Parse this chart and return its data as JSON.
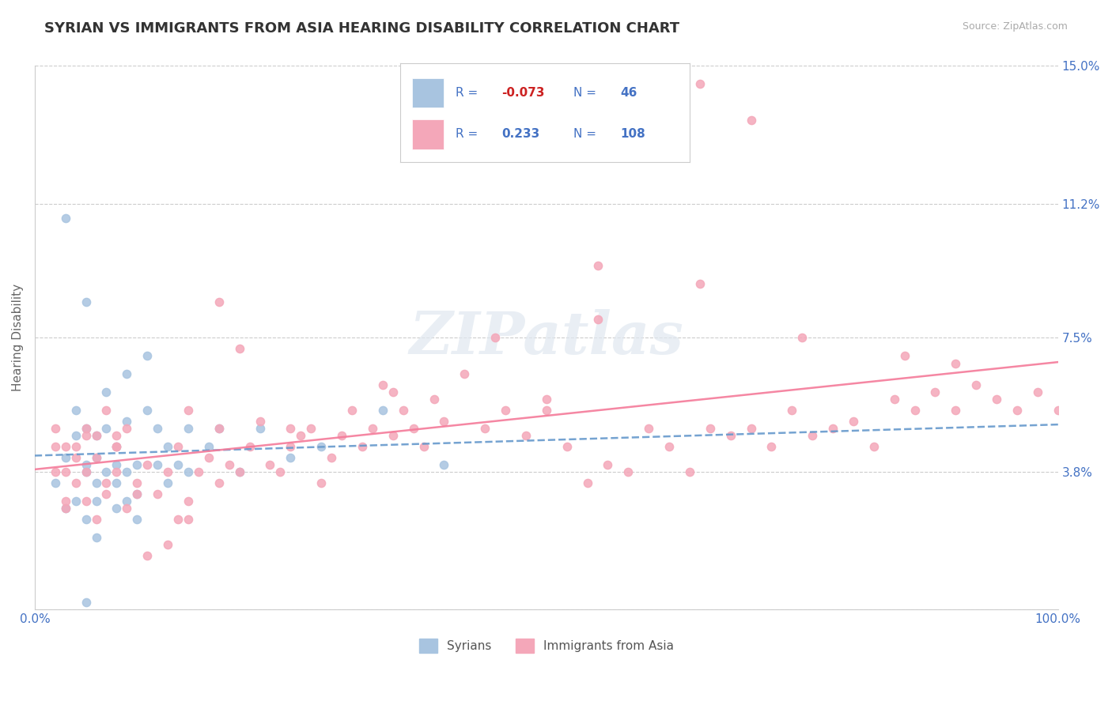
{
  "title": "SYRIAN VS IMMIGRANTS FROM ASIA HEARING DISABILITY CORRELATION CHART",
  "source": "Source: ZipAtlas.com",
  "ylabel": "Hearing Disability",
  "xlim": [
    0,
    100
  ],
  "ylim": [
    0,
    15
  ],
  "yticks": [
    0,
    3.8,
    7.5,
    11.2,
    15.0
  ],
  "ytick_labels": [
    "",
    "3.8%",
    "7.5%",
    "11.2%",
    "15.0%"
  ],
  "xtick_labels": [
    "0.0%",
    "100.0%"
  ],
  "xticks": [
    0,
    100
  ],
  "legend_r1": "-0.073",
  "legend_n1": "46",
  "legend_r2": "0.233",
  "legend_n2": "108",
  "color_syrian": "#a8c4e0",
  "color_asia": "#f4a7b9",
  "color_trendline_syrian": "#6699cc",
  "color_trendline_asia": "#f47a99",
  "color_axis_label": "#4472c4",
  "color_title": "#333333",
  "color_legend_text": "#4472c4",
  "watermark": "ZIPatlas",
  "syrians_x": [
    2,
    3,
    3,
    4,
    4,
    4,
    5,
    5,
    5,
    5,
    6,
    6,
    6,
    6,
    6,
    7,
    7,
    7,
    8,
    8,
    8,
    8,
    9,
    9,
    9,
    9,
    10,
    10,
    10,
    11,
    11,
    12,
    12,
    13,
    13,
    14,
    15,
    15,
    17,
    18,
    20,
    22,
    25,
    28,
    34,
    40
  ],
  "syrians_y": [
    3.5,
    2.8,
    4.2,
    3.0,
    4.8,
    5.5,
    2.5,
    3.8,
    4.0,
    5.0,
    2.0,
    3.0,
    3.5,
    4.2,
    4.8,
    3.8,
    5.0,
    6.0,
    2.8,
    3.5,
    4.0,
    4.5,
    3.0,
    3.8,
    5.2,
    6.5,
    2.5,
    3.2,
    4.0,
    5.5,
    7.0,
    4.0,
    5.0,
    3.5,
    4.5,
    4.0,
    3.8,
    5.0,
    4.5,
    5.0,
    3.8,
    5.0,
    4.2,
    4.5,
    5.5,
    4.0
  ],
  "asia_x": [
    2,
    3,
    3,
    4,
    5,
    5,
    6,
    7,
    8,
    8,
    9,
    9,
    10,
    11,
    12,
    13,
    14,
    14,
    15,
    15,
    16,
    17,
    18,
    18,
    19,
    20,
    21,
    22,
    23,
    24,
    25,
    26,
    27,
    28,
    29,
    30,
    31,
    32,
    33,
    34,
    35,
    36,
    37,
    38,
    39,
    40,
    42,
    44,
    46,
    48,
    50,
    52,
    54,
    56,
    58,
    60,
    62,
    64,
    66,
    68,
    70,
    72,
    74,
    76,
    78,
    80,
    82,
    84,
    86,
    88,
    90,
    92,
    94,
    96,
    98,
    100,
    65,
    70,
    55,
    45,
    35,
    25,
    20,
    18,
    15,
    13,
    11,
    10,
    8,
    7,
    6,
    5,
    4,
    3,
    2,
    2,
    3,
    4,
    5,
    6,
    7,
    8,
    55,
    65,
    75,
    85,
    90,
    50
  ],
  "asia_y": [
    3.8,
    2.8,
    4.5,
    3.5,
    3.0,
    4.8,
    2.5,
    3.2,
    3.8,
    4.5,
    2.8,
    5.0,
    3.5,
    4.0,
    3.2,
    3.8,
    2.5,
    4.5,
    3.0,
    5.5,
    3.8,
    4.2,
    3.5,
    5.0,
    4.0,
    3.8,
    4.5,
    5.2,
    4.0,
    3.8,
    4.5,
    4.8,
    5.0,
    3.5,
    4.2,
    4.8,
    5.5,
    4.5,
    5.0,
    6.2,
    4.8,
    5.5,
    5.0,
    4.5,
    5.8,
    5.2,
    6.5,
    5.0,
    5.5,
    4.8,
    5.5,
    4.5,
    3.5,
    4.0,
    3.8,
    5.0,
    4.5,
    3.8,
    5.0,
    4.8,
    5.0,
    4.5,
    5.5,
    4.8,
    5.0,
    5.2,
    4.5,
    5.8,
    5.5,
    6.0,
    5.5,
    6.2,
    5.8,
    5.5,
    6.0,
    5.5,
    14.5,
    13.5,
    9.5,
    7.5,
    6.0,
    5.0,
    7.2,
    8.5,
    2.5,
    1.8,
    1.5,
    3.2,
    4.8,
    3.5,
    4.2,
    3.8,
    4.5,
    3.0,
    4.5,
    5.0,
    3.8,
    4.2,
    5.0,
    4.8,
    5.5,
    4.5,
    8.0,
    9.0,
    7.5,
    7.0,
    6.8,
    5.8
  ]
}
